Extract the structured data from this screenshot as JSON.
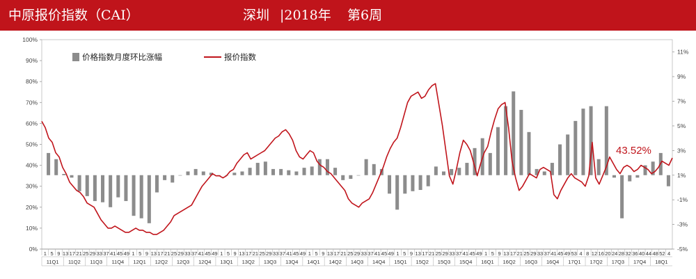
{
  "header": {
    "title": "中原报价指数（CAI）",
    "city": "深圳",
    "year": "|2018年",
    "week": "第6周"
  },
  "chart_data": {
    "type": "bar+line",
    "left_axis": {
      "ticks": [
        "0%",
        "10%",
        "20%",
        "30%",
        "40%",
        "50%",
        "60%",
        "70%",
        "80%",
        "90%",
        "100%"
      ],
      "ylim": [
        0,
        100
      ]
    },
    "right_axis": {
      "ticks": [
        "-5%",
        "-3%",
        "-1%",
        "1%",
        "3%",
        "5%",
        "7%",
        "9%",
        "11%"
      ],
      "ylim": [
        -5,
        12
      ]
    },
    "legend": [
      {
        "name": "价格指数月度环比涨幅",
        "type": "bar",
        "color": "#8c8c8c"
      },
      {
        "name": "报价指数",
        "type": "line",
        "color": "#c0141b"
      }
    ],
    "annotation": "43.52%",
    "quarters": [
      "11Q1",
      "11Q2",
      "11Q3",
      "11Q4",
      "12Q1",
      "12Q2",
      "12Q3",
      "12Q4",
      "13Q1",
      "13Q2",
      "13Q3",
      "13Q4",
      "14Q1",
      "14Q2",
      "14Q3",
      "14Q4",
      "15Q1",
      "15Q2",
      "15Q3",
      "15Q4",
      "16Q1",
      "16Q2",
      "16Q3",
      "16Q4",
      "17Q1",
      "17Q2",
      "17Q3",
      "17Q4",
      "18Q1"
    ],
    "week_ticks": [
      "1",
      "5",
      "9",
      "13",
      "17",
      "21",
      "25",
      "29",
      "33",
      "37",
      "41",
      "45",
      "49",
      "1",
      "5",
      "9",
      "13",
      "17",
      "21",
      "25",
      "29",
      "33",
      "37",
      "41",
      "45",
      "49",
      "1",
      "5",
      "9",
      "13",
      "17",
      "21",
      "25",
      "29",
      "33",
      "37",
      "41",
      "45",
      "49",
      "1",
      "5",
      "9",
      "13",
      "17",
      "21",
      "25",
      "29",
      "33",
      "37",
      "41",
      "45",
      "49",
      "1",
      "5",
      "9",
      "13",
      "17",
      "21",
      "25",
      "29",
      "33",
      "37",
      "41",
      "45",
      "49",
      "1",
      "5",
      "9",
      "13",
      "17",
      "21",
      "25",
      "29",
      "33",
      "37",
      "41",
      "45",
      "49",
      "53",
      "4",
      "8",
      "12",
      "16",
      "20",
      "24",
      "28",
      "32",
      "36",
      "40",
      "44",
      "48",
      "52",
      "4"
    ],
    "bars_monthly_change_pct": [
      2.8,
      2.3,
      1.1,
      0.8,
      -0.3,
      -0.7,
      -1.1,
      -1.2,
      -1.6,
      -0.8,
      -1.1,
      -2.3,
      -2.5,
      -2.9,
      -0.4,
      0.6,
      0.4,
      1.0,
      1.3,
      1.5,
      1.3,
      1.2,
      1.0,
      1.0,
      1.2,
      1.3,
      1.6,
      2.0,
      2.1,
      1.5,
      1.5,
      1.4,
      1.3,
      1.6,
      1.7,
      2.3,
      2.3,
      1.6,
      0.6,
      0.7,
      1.0,
      2.3,
      1.9,
      1.5,
      -0.5,
      -1.8,
      -0.5,
      -0.3,
      -0.2,
      0.1,
      1.7,
      1.3,
      1.5,
      1.6,
      2.0,
      3.2,
      4.0,
      2.8,
      4.9,
      6.6,
      7.8,
      6.3,
      4.5,
      1.5,
      1.3,
      2.0,
      3.5,
      4.3,
      5.4,
      6.4,
      6.6,
      2.3,
      6.6,
      0.8,
      -2.5,
      0.5,
      0.8,
      1.8,
      2.1,
      2.8,
      0.1
    ],
    "line_quote_index_pct": [
      61,
      58,
      53,
      51,
      46,
      44,
      39,
      36,
      32,
      30,
      28,
      27,
      25,
      22,
      21,
      20,
      17,
      14,
      12,
      10,
      10,
      11,
      10,
      9,
      8,
      8,
      9,
      10,
      9,
      9,
      8,
      8,
      7,
      7,
      8,
      9,
      11,
      13,
      16,
      17,
      18,
      19,
      20,
      21,
      24,
      27,
      30,
      32,
      34,
      36,
      35,
      35,
      34,
      35,
      37,
      38,
      41,
      43,
      45,
      46,
      43,
      44,
      45,
      46,
      47,
      49,
      51,
      53,
      54,
      56,
      57,
      55,
      52,
      47,
      44,
      43,
      45,
      47,
      46,
      42,
      40,
      39,
      37,
      36,
      34,
      32,
      30,
      28,
      24,
      22,
      21,
      20,
      22,
      23,
      24,
      27,
      31,
      35,
      39,
      44,
      48,
      51,
      53,
      58,
      64,
      70,
      73,
      74,
      75,
      72,
      73,
      76,
      78,
      79,
      69,
      59,
      47,
      35,
      31,
      38,
      46,
      52,
      50,
      47,
      41,
      35,
      41,
      46,
      49,
      56,
      62,
      67,
      69,
      70,
      58,
      42,
      34,
      28,
      30,
      33,
      36,
      35,
      34,
      38,
      39,
      38,
      37,
      26,
      24,
      28,
      31,
      34,
      36,
      34,
      33,
      32,
      30,
      35,
      51,
      34,
      31,
      35,
      39,
      44,
      41,
      38,
      36,
      39,
      40,
      39,
      37,
      38,
      40,
      39,
      38,
      36,
      37,
      39,
      42,
      41,
      40,
      43.52
    ]
  }
}
